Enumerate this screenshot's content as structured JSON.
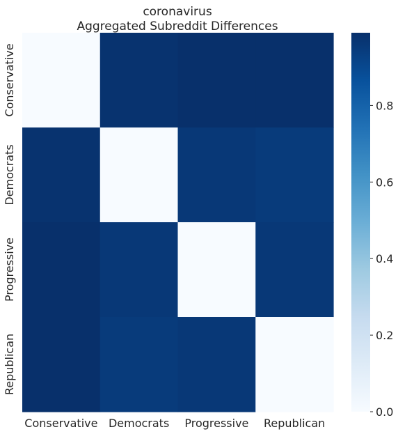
{
  "chart_data": {
    "type": "heatmap",
    "title": "coronavirus",
    "subtitle": "Aggregated Subreddit Differences",
    "x_categories": [
      "Conservative",
      "Democrats",
      "Progressive",
      "Republican"
    ],
    "y_categories": [
      "Conservative",
      "Democrats",
      "Progressive",
      "Republican"
    ],
    "values": [
      [
        0.0,
        0.98,
        0.99,
        0.99
      ],
      [
        0.98,
        0.0,
        0.96,
        0.95
      ],
      [
        0.99,
        0.96,
        0.0,
        0.96
      ],
      [
        0.99,
        0.95,
        0.96,
        0.0
      ]
    ],
    "colorbar": {
      "min": 0.0,
      "max": 0.99,
      "ticks": [
        0.0,
        0.2,
        0.4,
        0.6,
        0.8
      ],
      "tick_labels": [
        "0.0",
        "0.2",
        "0.4",
        "0.6",
        "0.8"
      ]
    },
    "colormap": "Blues",
    "colormap_stops": [
      "#f7fbff",
      "#deebf7",
      "#c6dbef",
      "#9ecae1",
      "#6baed6",
      "#4292c6",
      "#2171b5",
      "#08519c",
      "#08306b"
    ],
    "text_color": "#262626",
    "grid": false
  }
}
